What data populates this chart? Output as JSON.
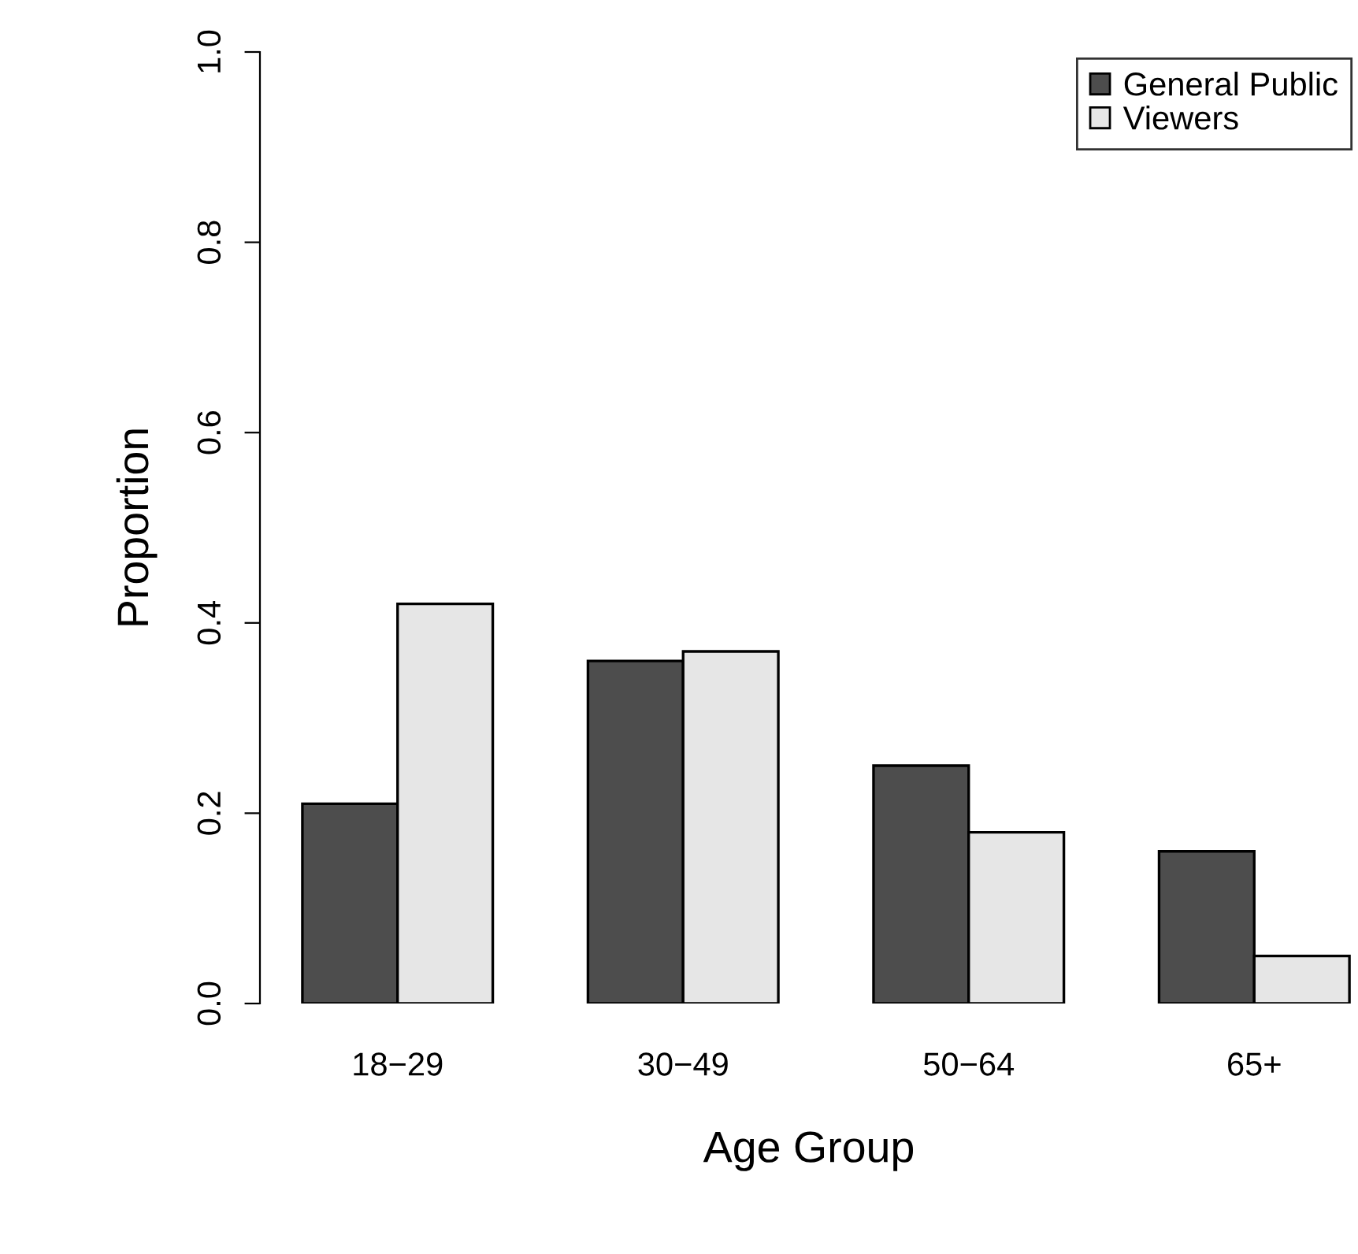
{
  "chart_data": {
    "type": "bar",
    "xlabel": "Age Group",
    "ylabel": "Proportion",
    "categories": [
      "18−29",
      "30−49",
      "50−64",
      "65+"
    ],
    "series": [
      {
        "name": "General Public",
        "color": "#4d4d4d",
        "values": [
          0.21,
          0.36,
          0.25,
          0.16
        ]
      },
      {
        "name": "Viewers",
        "color": "#e6e6e6",
        "values": [
          0.42,
          0.37,
          0.18,
          0.05
        ]
      }
    ],
    "ylim": [
      0,
      1
    ],
    "yticks": [
      {
        "value": 0,
        "label": "0.0"
      },
      {
        "value": 0.2,
        "label": "0.2"
      },
      {
        "value": 0.4,
        "label": "0.4"
      },
      {
        "value": 0.6,
        "label": "0.6"
      },
      {
        "value": 0.8,
        "label": "0.8"
      },
      {
        "value": 1,
        "label": "1.0"
      }
    ],
    "grid": false,
    "legend": "top right"
  }
}
